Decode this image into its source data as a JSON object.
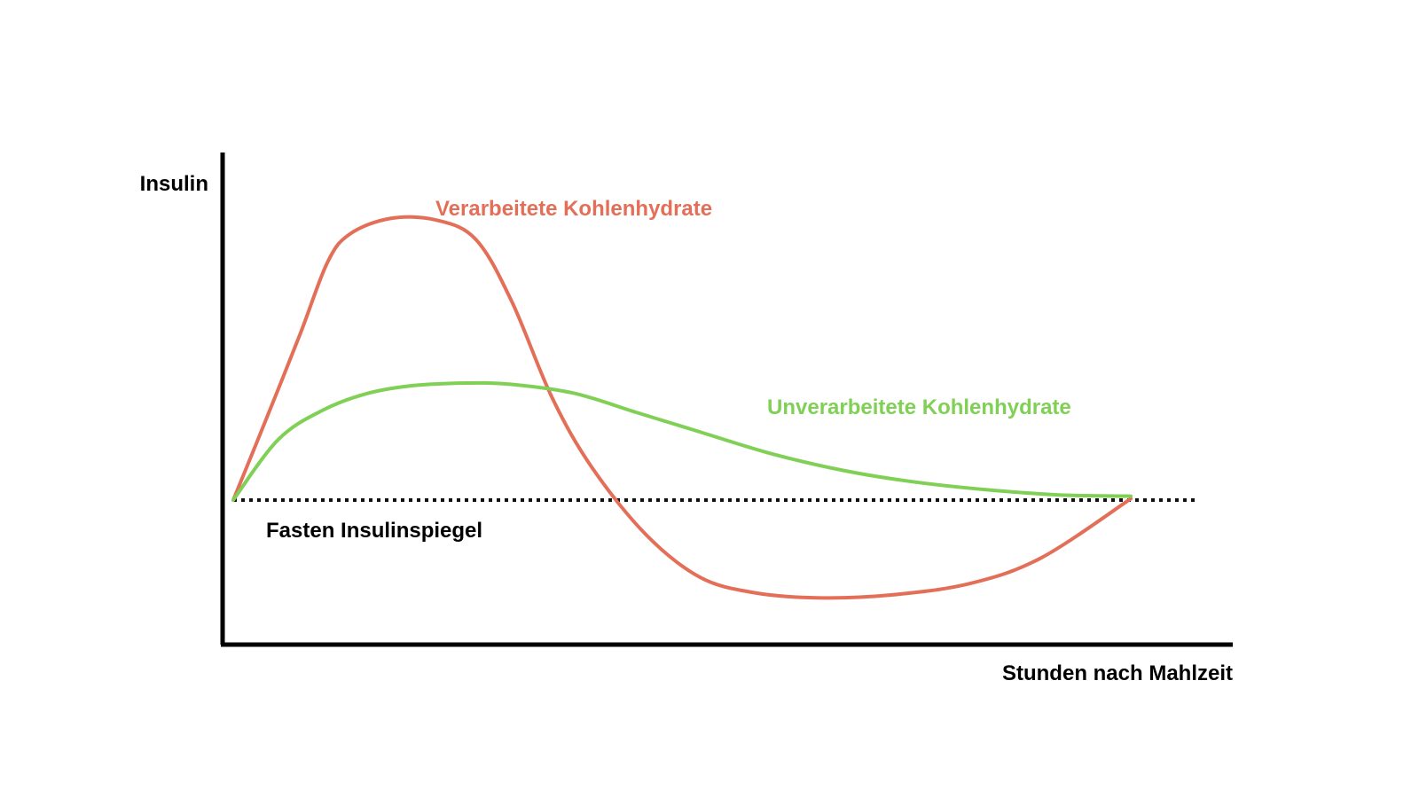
{
  "chart_data": {
    "type": "line",
    "title": "",
    "xlabel": "Stunden nach Mahlzeit",
    "ylabel": "Insulin",
    "reference_line": {
      "label": "Fasten Insulinspiegel",
      "y": 0,
      "style": "dotted",
      "color": "#111111"
    },
    "xlim": [
      0,
      10
    ],
    "ylim": [
      -1.2,
      2.4
    ],
    "series": [
      {
        "name": "Verarbeitete Kohlenhydrate",
        "color": "#e46f58",
        "x": [
          0,
          0.35,
          0.75,
          1.05,
          1.3,
          1.75,
          2.25,
          2.7,
          3.1,
          3.55,
          4.0,
          4.6,
          5.2,
          5.8,
          6.5,
          7.3,
          8.2,
          9.0,
          10.0
        ],
        "y": [
          0,
          0.6,
          1.3,
          1.85,
          2.07,
          2.19,
          2.18,
          2.03,
          1.55,
          0.8,
          0.25,
          -0.27,
          -0.6,
          -0.72,
          -0.76,
          -0.74,
          -0.65,
          -0.45,
          0.01
        ]
      },
      {
        "name": "Unverarbeitete Kohlenhydrate",
        "color": "#7fd055",
        "x": [
          0,
          0.5,
          1.0,
          1.5,
          2.0,
          2.6,
          3.1,
          3.8,
          4.5,
          5.2,
          6.0,
          6.8,
          7.6,
          8.4,
          9.2,
          10.0
        ],
        "y": [
          0,
          0.47,
          0.7,
          0.83,
          0.89,
          0.91,
          0.9,
          0.83,
          0.68,
          0.53,
          0.36,
          0.23,
          0.14,
          0.08,
          0.04,
          0.03
        ]
      }
    ]
  }
}
